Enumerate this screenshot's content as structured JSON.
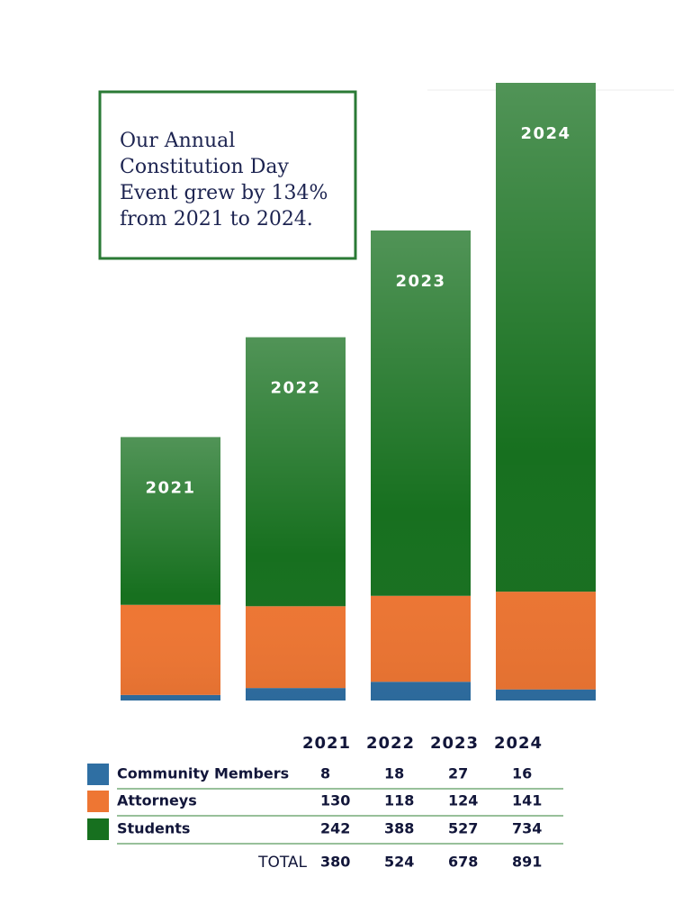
{
  "chart_data": {
    "type": "bar",
    "stacked": true,
    "annotation_lines": [
      "Our Annual",
      "Constitution Day",
      "Event grew by 134%",
      "from 2021 to 2024."
    ],
    "categories": [
      "2021",
      "2022",
      "2023",
      "2024"
    ],
    "series": [
      {
        "name": "Community Members",
        "color": "#2f6fa3",
        "values": [
          8,
          18,
          27,
          16
        ]
      },
      {
        "name": "Attorneys",
        "color": "#ee7633",
        "values": [
          130,
          118,
          124,
          141
        ]
      },
      {
        "name": "Students",
        "color": "#17701f",
        "values": [
          242,
          388,
          527,
          734
        ]
      }
    ],
    "total_label": "TOTAL",
    "totals": [
      380,
      524,
      678,
      891
    ]
  }
}
